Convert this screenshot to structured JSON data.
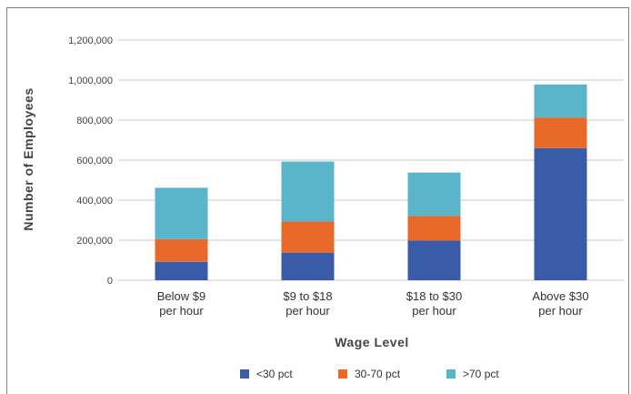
{
  "chart_data": {
    "type": "bar",
    "stacked": true,
    "title": "",
    "xlabel": "Wage Level",
    "ylabel": "Number of Employees",
    "categories": [
      [
        "Below $9",
        "per hour"
      ],
      [
        "$9 to $18",
        "per hour"
      ],
      [
        "$18 to $30",
        "per hour"
      ],
      [
        "Above $30",
        "per hour"
      ]
    ],
    "series": [
      {
        "name": "<30 pct",
        "color": "#3a5ca8",
        "values": [
          92000,
          138000,
          198000,
          660000
        ]
      },
      {
        "name": "30-70 pct",
        "color": "#e8692a",
        "values": [
          113000,
          155000,
          123000,
          153000
        ]
      },
      {
        "name": ">70 pct",
        "color": "#5ab4ca",
        "values": [
          257000,
          300000,
          217000,
          165000
        ]
      }
    ],
    "ylim": [
      0,
      1200000
    ],
    "yticks": [
      0,
      200000,
      400000,
      600000,
      800000,
      1000000,
      1200000
    ],
    "ytick_labels": [
      "0",
      "200,000",
      "400,000",
      "600,000",
      "800,000",
      "1,000,000",
      "1,200,000"
    ],
    "grid": true,
    "legend_position": "bottom"
  }
}
